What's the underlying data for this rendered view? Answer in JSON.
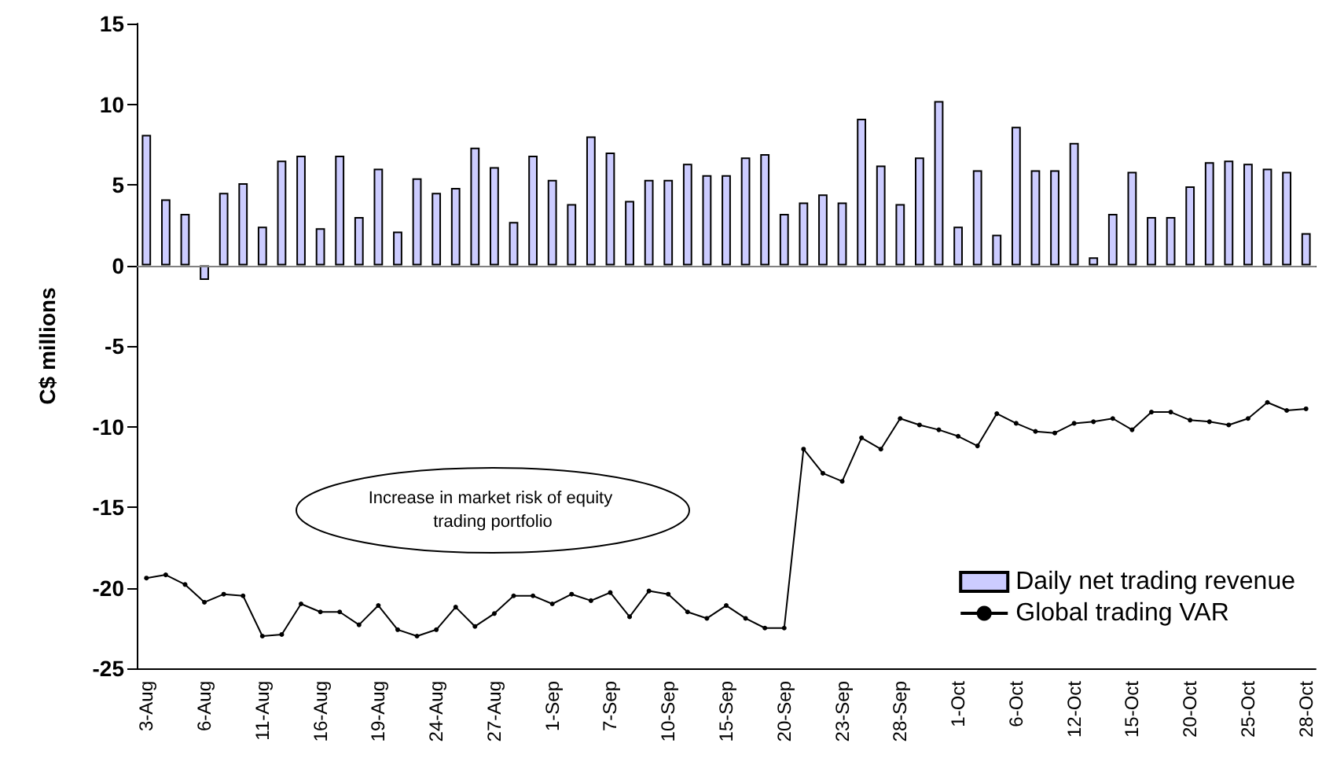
{
  "chart_data": {
    "type": "bar",
    "ylabel": "C$ millions",
    "categories": [
      "3-Aug",
      null,
      null,
      "6-Aug",
      null,
      null,
      "11-Aug",
      null,
      null,
      "16-Aug",
      null,
      null,
      "19-Aug",
      null,
      null,
      "24-Aug",
      null,
      null,
      "27-Aug",
      null,
      null,
      "1-Sep",
      null,
      null,
      "7-Sep",
      null,
      null,
      "10-Sep",
      null,
      null,
      "15-Sep",
      null,
      null,
      "20-Sep",
      null,
      null,
      "23-Sep",
      null,
      null,
      "28-Sep",
      null,
      null,
      "1-Oct",
      null,
      null,
      "6-Oct",
      null,
      null,
      "12-Oct",
      null,
      null,
      "15-Oct",
      null,
      null,
      "20-Oct",
      null,
      null,
      "25-Oct",
      null,
      null,
      "28-Oct"
    ],
    "series": [
      {
        "name": "Daily net trading revenue",
        "color": "#ccccff",
        "values": [
          8.1,
          4.1,
          3.2,
          -0.9,
          4.5,
          5.1,
          2.4,
          6.5,
          6.8,
          2.3,
          6.8,
          3.0,
          6.0,
          2.1,
          5.4,
          4.5,
          4.8,
          7.3,
          6.1,
          2.7,
          6.8,
          5.3,
          3.8,
          8.0,
          7.0,
          4.0,
          5.3,
          5.3,
          6.3,
          5.6,
          5.6,
          6.7,
          6.9,
          3.2,
          3.9,
          4.4,
          3.9,
          9.1,
          6.2,
          3.8,
          6.7,
          10.2,
          2.4,
          5.9,
          1.9,
          8.6,
          5.9,
          5.9,
          7.6,
          0.5,
          3.2,
          5.8,
          3.0,
          3.0,
          4.9,
          6.4,
          6.5,
          6.3,
          6.0,
          5.8,
          2.0
        ]
      },
      {
        "name": "Global trading VAR",
        "type": "line",
        "color": "#000000",
        "marker": "circle",
        "line_style": "solid",
        "values": [
          -19.4,
          -19.2,
          -19.8,
          -20.9,
          -20.4,
          -20.5,
          -23.0,
          -22.9,
          -21.0,
          -21.5,
          -21.5,
          -22.3,
          -21.1,
          -22.6,
          -23.0,
          -22.6,
          -21.2,
          -22.4,
          -21.6,
          -20.5,
          -20.5,
          -21.0,
          -20.4,
          -20.8,
          -20.3,
          -21.8,
          -20.2,
          -20.4,
          -21.5,
          -21.9,
          -21.1,
          -21.9,
          -22.5,
          -22.5,
          -11.4,
          -12.9,
          -13.4,
          -10.7,
          -11.4,
          -9.5,
          -9.9,
          -10.2,
          -10.6,
          -11.2,
          -9.2,
          -9.8,
          -10.3,
          -10.4,
          -9.8,
          -9.7,
          -9.5,
          -10.2,
          -9.1,
          -9.1,
          -9.6,
          -9.7,
          -9.9,
          -9.5,
          -8.5,
          -9.0,
          -8.9
        ]
      }
    ],
    "ylim": [
      -25,
      15
    ],
    "yticks": [
      -25,
      -20,
      -15,
      -10,
      -5,
      0,
      5,
      10,
      15
    ],
    "ref_lines": [
      {
        "axis": "y",
        "value": 0,
        "color": "#808080"
      }
    ],
    "annotations": [
      "Increase in market risk of equity trading portfolio"
    ],
    "grid": false,
    "legend": "bottom right"
  }
}
